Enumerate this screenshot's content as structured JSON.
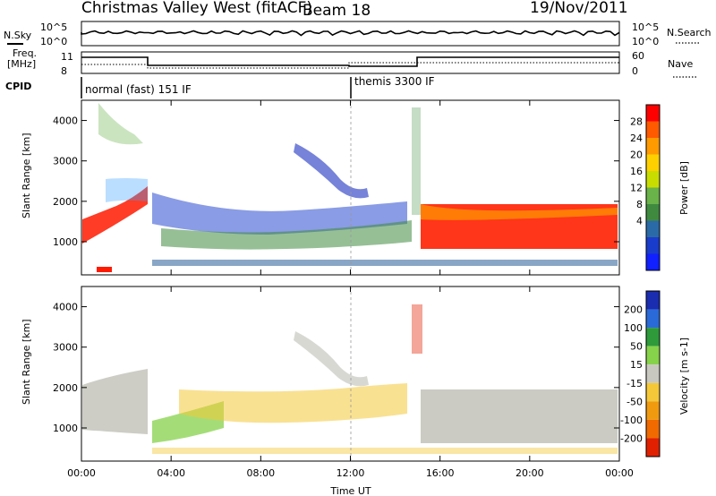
{
  "header": {
    "station": "Christmas Valley West (fitACF)",
    "beam": "Beam 18",
    "date": "19/Nov/2011"
  },
  "top_panels": {
    "nsky_label": "N.Sky",
    "nsky_ticks": [
      "10^5",
      "10^0"
    ],
    "nsearch_label": "N.Search",
    "nsearch_ticks": [
      "10^5",
      "10^0"
    ],
    "freq_label": "Freq.",
    "freq_unit": "[MHz]",
    "freq_ticks": [
      "11",
      "8"
    ],
    "nave_label": "Nave",
    "nave_ticks": [
      "60",
      "0"
    ],
    "cpid_label": "CPID",
    "cpid_segments": [
      {
        "start_hr": 0,
        "end_hr": 12,
        "label": "normal (fast) 151 IF"
      },
      {
        "start_hr": 12,
        "end_hr": 24,
        "label": "themis 3300 IF"
      }
    ]
  },
  "chart_data": [
    {
      "type": "heatmap",
      "title": "Power",
      "xlabel": "",
      "ylabel": "Slant Range [km]",
      "xlim": [
        0,
        24
      ],
      "ylim": [
        180,
        4500
      ],
      "yticks": [
        1000,
        2000,
        3000,
        4000
      ],
      "ytick_labels": [
        "1000",
        "2000",
        "3000",
        "4000"
      ],
      "colorbar": {
        "label": "Power [dB]",
        "ticks": [
          "28",
          "24",
          "20",
          "16",
          "12",
          "8",
          "4"
        ],
        "colors": [
          "#ff0000",
          "#ff5a00",
          "#ff9a00",
          "#ffd000",
          "#c8dc00",
          "#6ab24a",
          "#3f8a3f",
          "#2a6aa6",
          "#1a3ccc",
          "#1020ff"
        ]
      }
    },
    {
      "type": "heatmap",
      "title": "Velocity",
      "xlabel": "Time UT",
      "ylabel": "Slant Range [km]",
      "xlim": [
        0,
        24
      ],
      "ylim": [
        180,
        4500
      ],
      "xticks": [
        "00:00",
        "04:00",
        "08:00",
        "12:00",
        "16:00",
        "20:00",
        "00:00"
      ],
      "yticks": [
        1000,
        2000,
        3000,
        4000
      ],
      "ytick_labels": [
        "1000",
        "2000",
        "3000",
        "4000"
      ],
      "colorbar": {
        "label": "Velocity [m s-1]",
        "ticks": [
          "200",
          "100",
          "50",
          "15",
          "-15",
          "-50",
          "-100",
          "-200"
        ],
        "colors": [
          "#1a2cb0",
          "#2a6ad8",
          "#2e9a3a",
          "#86d24a",
          "#c8c8c0",
          "#f4c838",
          "#f09a10",
          "#f06a00",
          "#e02000"
        ]
      }
    }
  ]
}
